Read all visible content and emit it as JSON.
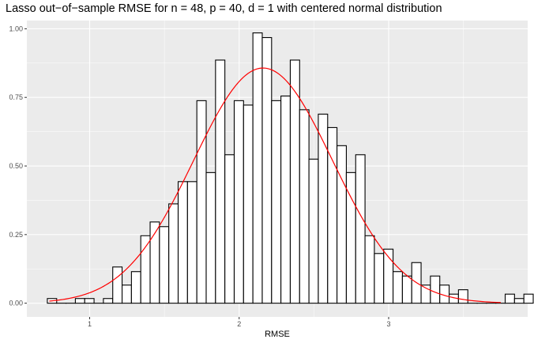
{
  "chart_data": {
    "type": "bar",
    "subtype": "histogram with fitted normal density curve",
    "title": "Lasso out−of−sample RMSE for n = 48, p = 40, d = 1 with centered normal distribution",
    "xlabel": "RMSE",
    "ylabel": "",
    "xlim": [
      0.58,
      3.93
    ],
    "ylim": [
      -0.05,
      1.03
    ],
    "x_ticks": [
      1,
      2,
      3
    ],
    "x_tick_labels": [
      "1",
      "2",
      "3"
    ],
    "y_ticks": [
      0,
      0.25,
      0.5,
      0.75,
      1.0
    ],
    "y_tick_labels": [
      "0.00",
      "0.25",
      "0.50",
      "0.75",
      "1.00"
    ],
    "grid": true,
    "legend": "none",
    "bin_start": 0.717,
    "bin_width": 0.0625,
    "bin_values": [
      0.017,
      0,
      0,
      0.017,
      0.017,
      0,
      0.017,
      0.132,
      0.066,
      0.115,
      0.246,
      0.296,
      0.279,
      0.362,
      0.443,
      0.443,
      0.738,
      0.476,
      0.886,
      0.541,
      0.738,
      0.722,
      0.985,
      0.968,
      0.738,
      0.755,
      0.886,
      0.705,
      0.525,
      0.689,
      0.64,
      0.574,
      0.476,
      0.541,
      0.246,
      0.181,
      0.197,
      0.115,
      0.099,
      0.148,
      0.066,
      0.099,
      0.066,
      0.033,
      0.049,
      0,
      0,
      0,
      0,
      0.033,
      0.017,
      0.033
    ],
    "normal_curve": {
      "mean": 2.16,
      "sd": 0.465,
      "peak": 0.857,
      "x_from": 0.73,
      "x_to": 3.75
    },
    "colors": {
      "bar_fill": "#ffffff",
      "bar_outline": "#000000",
      "curve": "#ff0000",
      "panel": "#ebebeb",
      "grid": "#ffffff"
    }
  }
}
